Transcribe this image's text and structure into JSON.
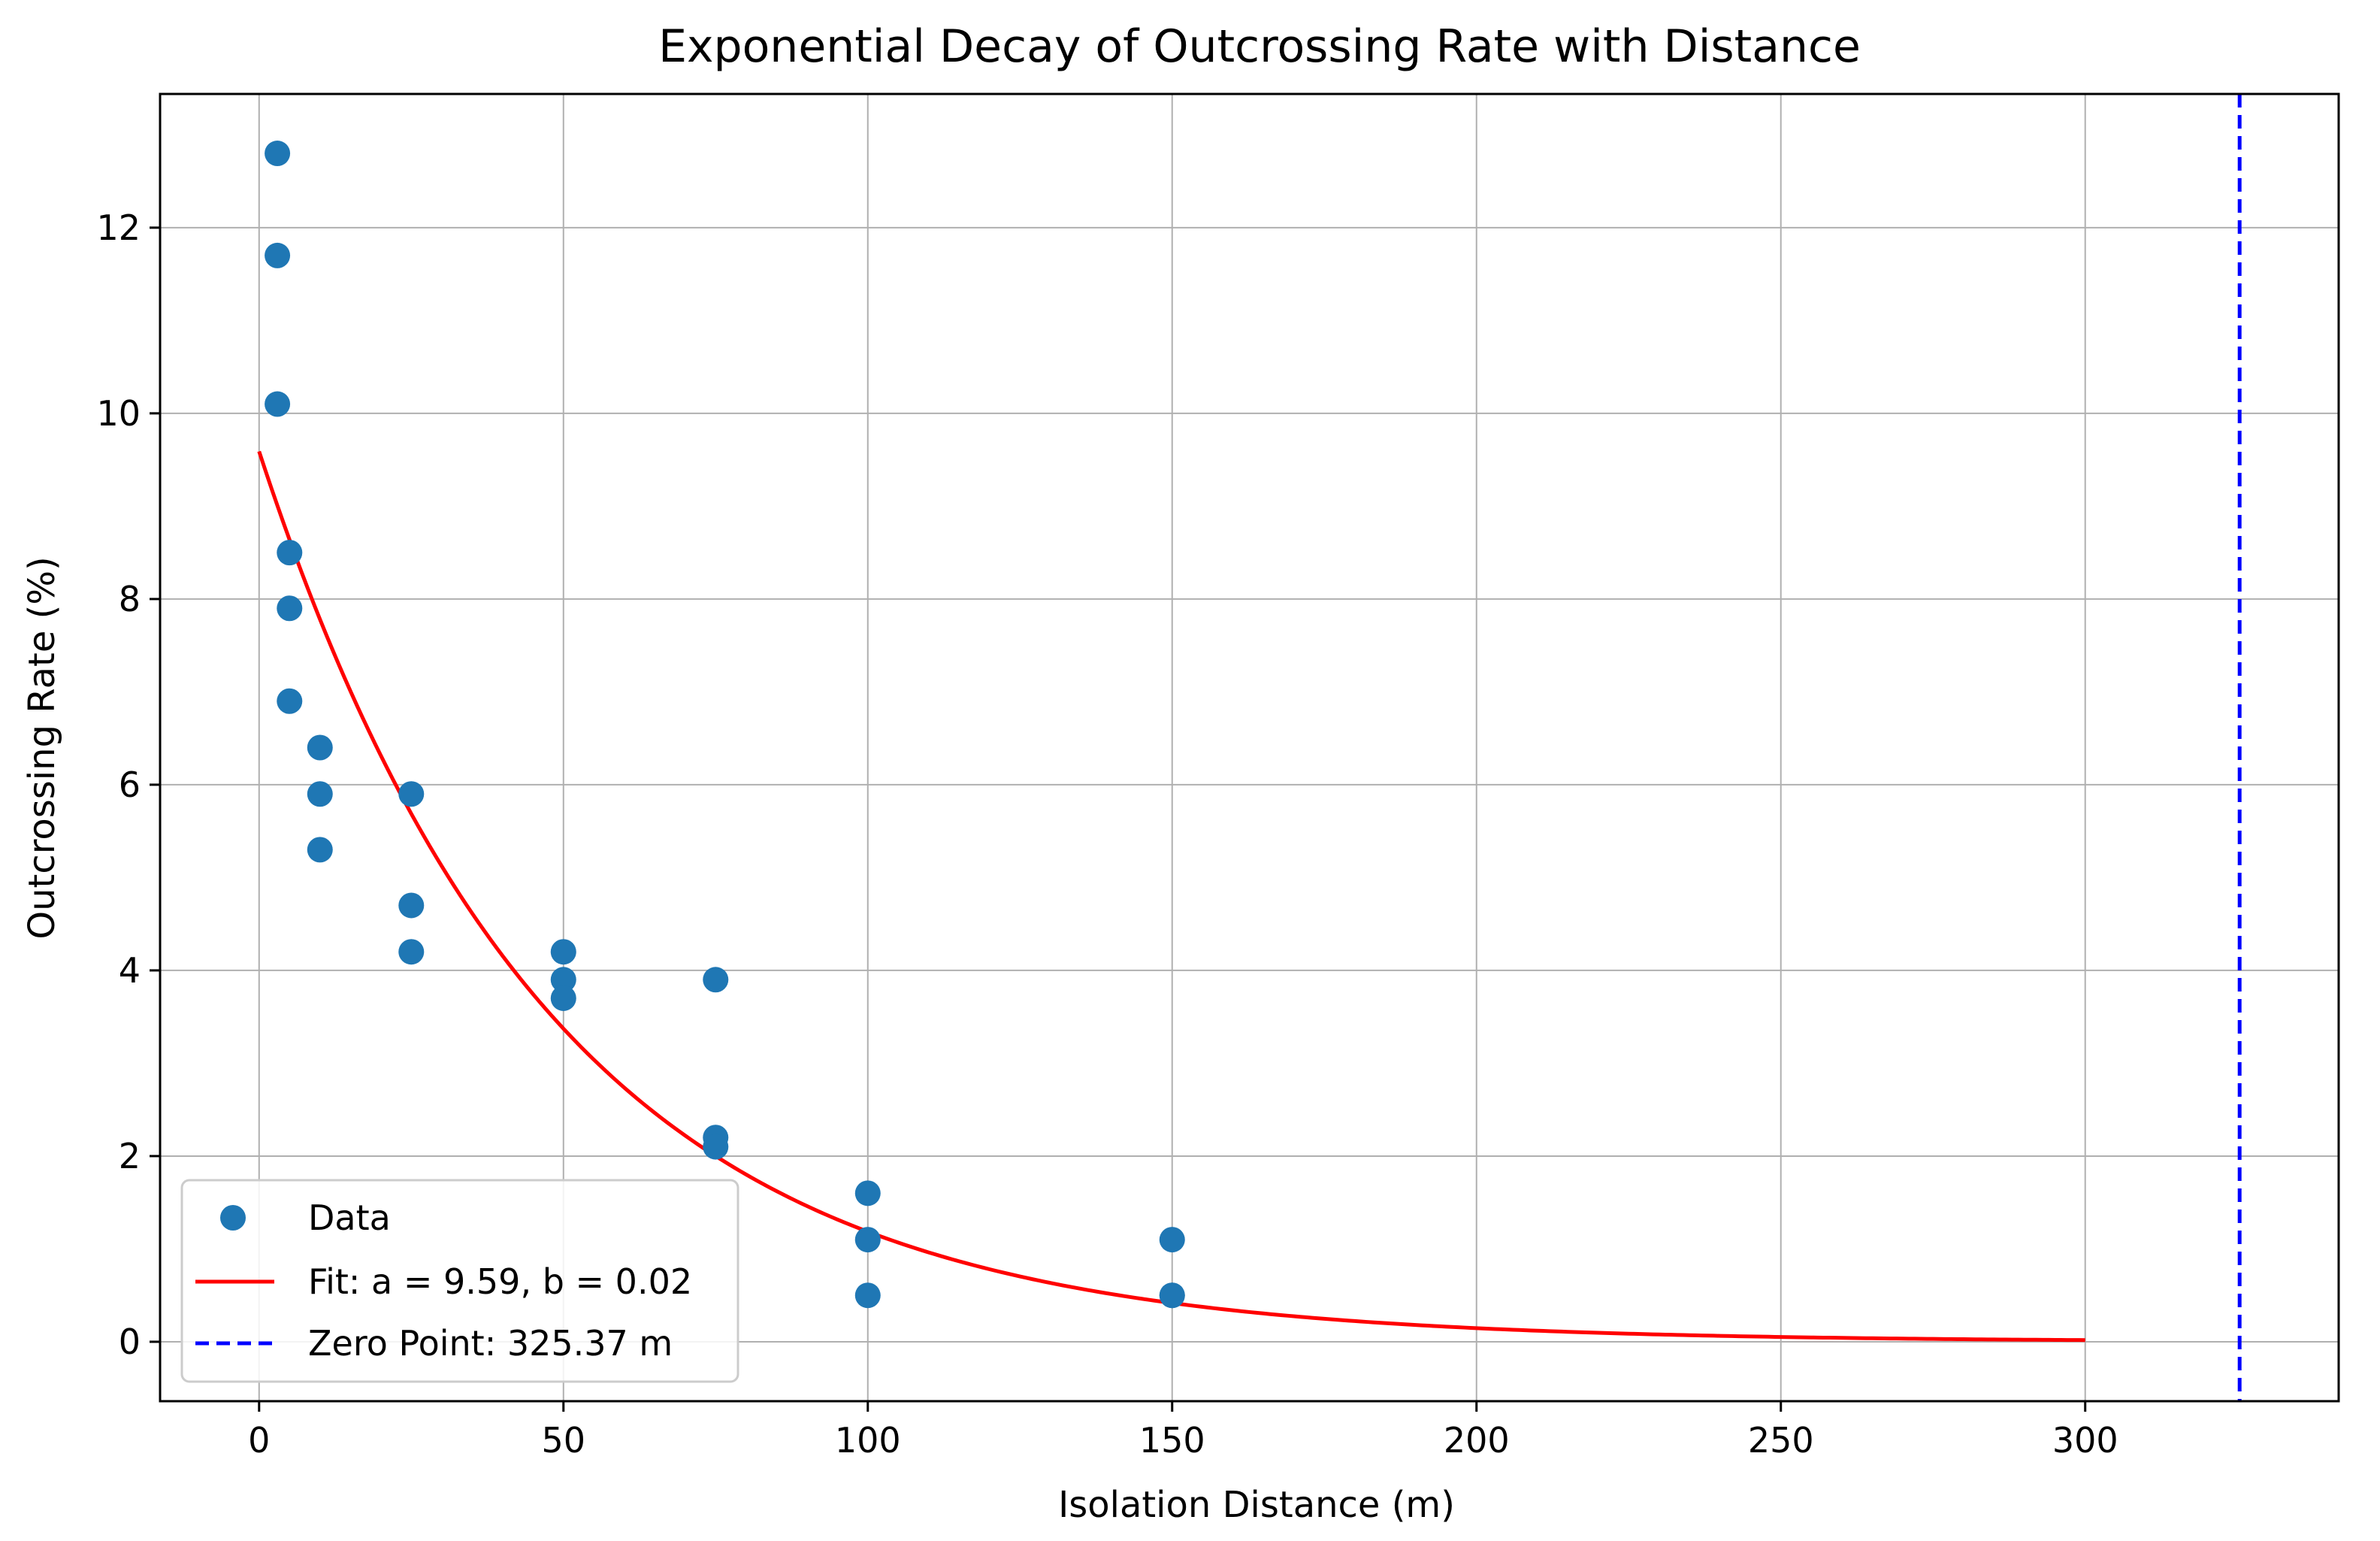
{
  "chart_data": {
    "type": "scatter",
    "title": "Exponential Decay of Outcrossing Rate with Distance",
    "xlabel": "Isolation Distance (m)",
    "ylabel": "Outcrossing Rate (%)",
    "xlim": [
      -16.27,
      341.64
    ],
    "ylim": [
      -0.64,
      13.44
    ],
    "xticks": [
      0,
      50,
      100,
      150,
      200,
      250,
      300
    ],
    "xtick_labels": [
      "0",
      "50",
      "100",
      "150",
      "200",
      "250",
      "300"
    ],
    "yticks": [
      0,
      2,
      4,
      6,
      8,
      10,
      12
    ],
    "ytick_labels": [
      "0",
      "2",
      "4",
      "6",
      "8",
      "10",
      "12"
    ],
    "grid": true,
    "legend_position": "lower-left",
    "series": [
      {
        "name": "Data",
        "kind": "scatter",
        "color": "#1f77b4",
        "points": [
          [
            3,
            12.8
          ],
          [
            3,
            11.7
          ],
          [
            3,
            10.1
          ],
          [
            5,
            8.5
          ],
          [
            5,
            7.9
          ],
          [
            5,
            6.9
          ],
          [
            10,
            6.4
          ],
          [
            10,
            5.9
          ],
          [
            10,
            5.3
          ],
          [
            25,
            5.9
          ],
          [
            25,
            4.7
          ],
          [
            25,
            4.2
          ],
          [
            50,
            4.2
          ],
          [
            50,
            3.9
          ],
          [
            50,
            3.7
          ],
          [
            75,
            3.9
          ],
          [
            75,
            2.2
          ],
          [
            75,
            2.1
          ],
          [
            100,
            1.6
          ],
          [
            100,
            1.1
          ],
          [
            100,
            0.5
          ],
          [
            150,
            1.1
          ],
          [
            150,
            0.5
          ],
          [
            150,
            0.5
          ]
        ]
      },
      {
        "name": "Fit: a = 9.59, b = 0.02",
        "kind": "line",
        "color": "#ff0000",
        "a": 9.59,
        "b": 0.0209,
        "x_range": [
          0,
          300
        ]
      },
      {
        "name": "Zero Point: 325.37 m",
        "kind": "vline",
        "color": "#0000ff",
        "x": 325.37
      }
    ],
    "legend": [
      {
        "label": "Data",
        "marker": "dot",
        "color": "#1f77b4"
      },
      {
        "label": "Fit: a = 9.59, b = 0.02",
        "marker": "line",
        "color": "#ff0000"
      },
      {
        "label": "Zero Point: 325.37 m",
        "marker": "dashed",
        "color": "#0000ff"
      }
    ]
  }
}
